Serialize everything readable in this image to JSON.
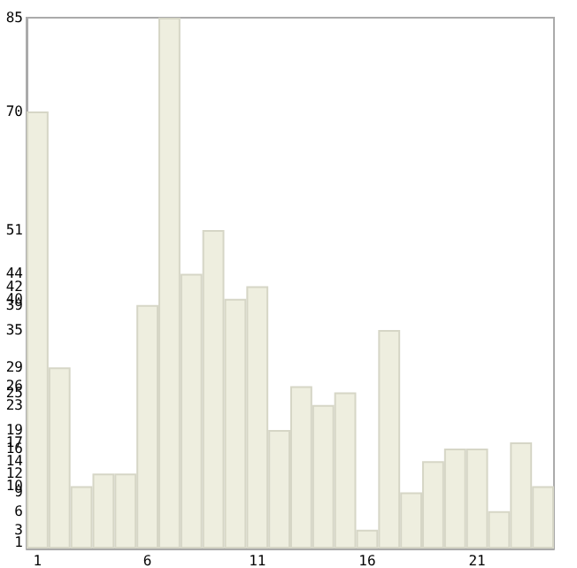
{
  "chart_data": {
    "type": "bar",
    "categories": [
      "1",
      null,
      null,
      null,
      null,
      "6",
      null,
      null,
      null,
      null,
      "11",
      null,
      null,
      null,
      null,
      "16",
      null,
      null,
      null,
      null,
      "21",
      null,
      null,
      null
    ],
    "values": [
      70,
      29,
      10,
      12,
      12,
      39,
      85,
      44,
      51,
      40,
      42,
      19,
      26,
      23,
      25,
      3,
      35,
      9,
      14,
      16,
      16,
      6,
      17,
      10
    ],
    "color": "#eeeedf",
    "ylim": [
      0,
      85
    ],
    "yticks": [
      1,
      3,
      6,
      9,
      10,
      12,
      14,
      16,
      17,
      19,
      23,
      25,
      26,
      29,
      35,
      39,
      40,
      42,
      44,
      51,
      70,
      85
    ],
    "grid": false
  }
}
